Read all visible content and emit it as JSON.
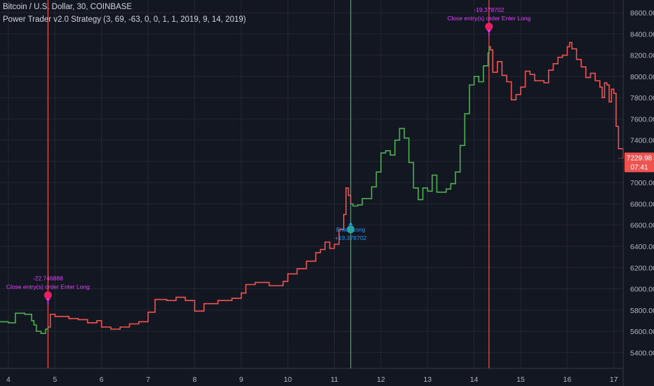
{
  "header": {
    "title": "Bitcoin / U.S. Dollar, 30, COINBASE",
    "strategy": "Power Trader v2.0 Strategy (3, 69, -63, 0, 0, 1, 1, 2019, 9, 14, 2019)"
  },
  "colors": {
    "background": "#131722",
    "grid": "#242733",
    "axis_text": "#b2b5be",
    "up": "#4caf50",
    "down": "#ef5350",
    "exit_marker": "#e91e63",
    "exit_text": "#e040fb",
    "entry_marker": "#26a69a",
    "entry_text": "#2196f3",
    "price_tag": "#ef5350"
  },
  "chart_data": {
    "type": "line",
    "x_ticks": [
      "4",
      "5",
      "6",
      "7",
      "8",
      "9",
      "10",
      "11",
      "12",
      "13",
      "14",
      "15",
      "16",
      "17"
    ],
    "y_ticks": [
      "5400.00",
      "5600.00",
      "5800.00",
      "6000.00",
      "6200.00",
      "6400.00",
      "6600.00",
      "6800.00",
      "7000.00",
      "7200.00",
      "7400.00",
      "7600.00",
      "7800.00",
      "8000.00",
      "8200.00",
      "8400.00",
      "8600.00"
    ],
    "ylim": [
      5250,
      8720
    ],
    "xlim": [
      3.82,
      17.2
    ],
    "series": [
      {
        "color": "up",
        "points": [
          [
            3.82,
            5690
          ],
          [
            4.0,
            5680
          ],
          [
            4.15,
            5770
          ],
          [
            4.35,
            5760
          ],
          [
            4.5,
            5700
          ],
          [
            4.55,
            5660
          ],
          [
            4.6,
            5600
          ],
          [
            4.7,
            5580
          ],
          [
            4.8,
            5620
          ],
          [
            4.85,
            5640
          ]
        ]
      },
      {
        "color": "down",
        "points": [
          [
            4.85,
            5640
          ],
          [
            4.9,
            5760
          ],
          [
            5.0,
            5740
          ],
          [
            5.3,
            5720
          ],
          [
            5.5,
            5710
          ],
          [
            5.7,
            5680
          ],
          [
            5.9,
            5700
          ],
          [
            6.0,
            5640
          ],
          [
            6.2,
            5620
          ],
          [
            6.4,
            5640
          ],
          [
            6.6,
            5670
          ],
          [
            6.8,
            5690
          ],
          [
            7.0,
            5780
          ],
          [
            7.15,
            5900
          ],
          [
            7.4,
            5890
          ],
          [
            7.6,
            5920
          ],
          [
            7.8,
            5890
          ],
          [
            8.0,
            5790
          ],
          [
            8.2,
            5860
          ],
          [
            8.5,
            5890
          ],
          [
            8.8,
            5910
          ],
          [
            9.0,
            5960
          ],
          [
            9.1,
            6040
          ],
          [
            9.3,
            6060
          ],
          [
            9.6,
            6030
          ],
          [
            9.9,
            6070
          ],
          [
            10.0,
            6140
          ],
          [
            10.2,
            6190
          ],
          [
            10.4,
            6260
          ],
          [
            10.6,
            6340
          ],
          [
            10.7,
            6370
          ],
          [
            10.8,
            6440
          ],
          [
            10.9,
            6380
          ],
          [
            11.0,
            6420
          ],
          [
            11.1,
            6560
          ],
          [
            11.2,
            6700
          ],
          [
            11.25,
            6950
          ],
          [
            11.3,
            6880
          ],
          [
            11.35,
            6800
          ]
        ]
      },
      {
        "color": "up",
        "points": [
          [
            11.35,
            6800
          ],
          [
            11.4,
            6780
          ],
          [
            11.5,
            6790
          ],
          [
            11.6,
            6850
          ],
          [
            11.8,
            6960
          ],
          [
            11.9,
            7100
          ],
          [
            12.0,
            7280
          ],
          [
            12.1,
            7300
          ],
          [
            12.2,
            7260
          ],
          [
            12.3,
            7400
          ],
          [
            12.4,
            7510
          ],
          [
            12.5,
            7420
          ],
          [
            12.6,
            7190
          ],
          [
            12.7,
            6950
          ],
          [
            12.8,
            6840
          ],
          [
            12.9,
            6950
          ],
          [
            13.0,
            6920
          ],
          [
            13.1,
            7070
          ],
          [
            13.2,
            6910
          ],
          [
            13.4,
            6940
          ],
          [
            13.5,
            6990
          ],
          [
            13.6,
            7100
          ],
          [
            13.7,
            7350
          ],
          [
            13.8,
            7650
          ],
          [
            13.9,
            7920
          ],
          [
            14.0,
            8000
          ],
          [
            14.1,
            7950
          ],
          [
            14.2,
            8100
          ],
          [
            14.3,
            8220
          ],
          [
            14.32,
            8280
          ]
        ]
      },
      {
        "color": "down",
        "points": [
          [
            14.32,
            8280
          ],
          [
            14.35,
            8250
          ],
          [
            14.4,
            8040
          ],
          [
            14.5,
            8140
          ],
          [
            14.6,
            8010
          ],
          [
            14.7,
            7950
          ],
          [
            14.8,
            7780
          ],
          [
            14.9,
            7830
          ],
          [
            15.0,
            7900
          ],
          [
            15.1,
            8050
          ],
          [
            15.2,
            8020
          ],
          [
            15.3,
            7960
          ],
          [
            15.5,
            7940
          ],
          [
            15.6,
            8060
          ],
          [
            15.7,
            8120
          ],
          [
            15.8,
            8180
          ],
          [
            15.9,
            8200
          ],
          [
            16.0,
            8280
          ],
          [
            16.05,
            8320
          ],
          [
            16.1,
            8260
          ],
          [
            16.2,
            8160
          ],
          [
            16.3,
            8090
          ],
          [
            16.4,
            7990
          ],
          [
            16.5,
            8030
          ],
          [
            16.6,
            7960
          ],
          [
            16.7,
            7900
          ],
          [
            16.75,
            7800
          ],
          [
            16.8,
            7940
          ],
          [
            16.85,
            7920
          ],
          [
            16.9,
            7760
          ],
          [
            16.95,
            7880
          ],
          [
            17.0,
            7840
          ],
          [
            17.05,
            7530
          ],
          [
            17.1,
            7320
          ],
          [
            17.2,
            7230
          ]
        ]
      }
    ],
    "markers": [
      {
        "kind": "exit",
        "x": 4.85,
        "y": 5940,
        "line": "down",
        "value": "-22.746888",
        "label": "Close entry(s) order Enter Long"
      },
      {
        "kind": "entry",
        "x": 11.35,
        "y": 6560,
        "line": "up",
        "value": "+19.378702",
        "label": "Enter Long"
      },
      {
        "kind": "exit",
        "x": 14.32,
        "y": 8470,
        "line": "down",
        "value": "-19.378702",
        "label": "Close entry(s) order Enter Long"
      }
    ],
    "last_price": {
      "value": "7229.98",
      "countdown": "07:41"
    }
  }
}
